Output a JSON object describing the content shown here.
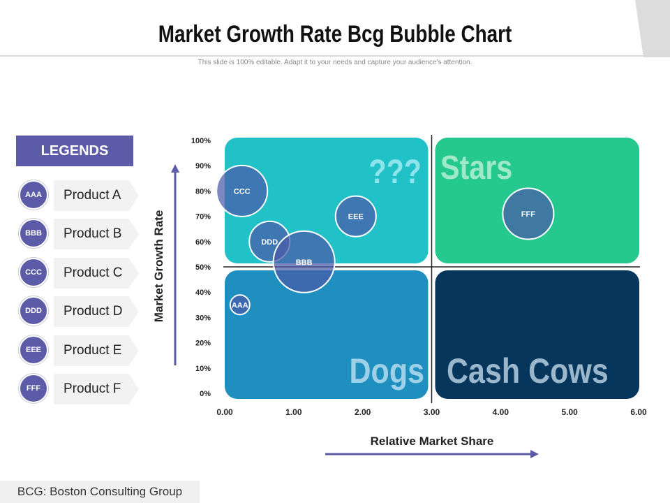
{
  "header": {
    "title": "Market Growth Rate Bcg Bubble Chart",
    "subtitle": "This slide is 100% editable. Adapt it to your needs and capture your audience's attention."
  },
  "legend": {
    "title": "LEGENDS",
    "items": [
      {
        "code": "AAA",
        "label": "Product A"
      },
      {
        "code": "BBB",
        "label": "Product B"
      },
      {
        "code": "CCC",
        "label": "Product C"
      },
      {
        "code": "DDD",
        "label": "Product D"
      },
      {
        "code": "EEE",
        "label": "Product E"
      },
      {
        "code": "FFF",
        "label": "Product F"
      }
    ]
  },
  "footer": {
    "note": "BCG: Boston Consulting Group"
  },
  "colors": {
    "legend_purple": "#5b5ba8",
    "question_quadrant": "#21c1c8",
    "stars_quadrant": "#25c98f",
    "dogs_quadrant": "#1f8fbf",
    "cash_cows_quadrant": "#07365c",
    "bubble_fill": "#4a5aa8"
  },
  "chart_data": {
    "type": "bubble",
    "title": "",
    "xlabel": "Relative Market Share",
    "ylabel": "Market Growth Rate",
    "xlim": [
      0,
      6
    ],
    "ylim": [
      0,
      100
    ],
    "x_ticks": [
      "0.00",
      "1.00",
      "2.00",
      "3.00",
      "4.00",
      "5.00",
      "6.00"
    ],
    "y_ticks": [
      "0%",
      "10%",
      "20%",
      "30%",
      "40%",
      "50%",
      "60%",
      "70%",
      "80%",
      "90%",
      "100%"
    ],
    "divider": {
      "x": 3.0,
      "y": 50
    },
    "quadrants": [
      {
        "name": "question",
        "label": "???"
      },
      {
        "name": "stars",
        "label": "Stars"
      },
      {
        "name": "dogs",
        "label": "Dogs"
      },
      {
        "name": "cash_cows",
        "label": "Cash Cows"
      }
    ],
    "bubbles": [
      {
        "label": "AAA",
        "x": 0.22,
        "y": 35,
        "size": 1
      },
      {
        "label": "CCC",
        "x": 0.25,
        "y": 80,
        "size": 4
      },
      {
        "label": "DDD",
        "x": 0.65,
        "y": 60,
        "size": 3
      },
      {
        "label": "EEE",
        "x": 1.9,
        "y": 70,
        "size": 3
      },
      {
        "label": "BBB",
        "x": 1.15,
        "y": 52,
        "size": 5
      },
      {
        "label": "FFF",
        "x": 4.4,
        "y": 71,
        "size": 4
      }
    ]
  }
}
